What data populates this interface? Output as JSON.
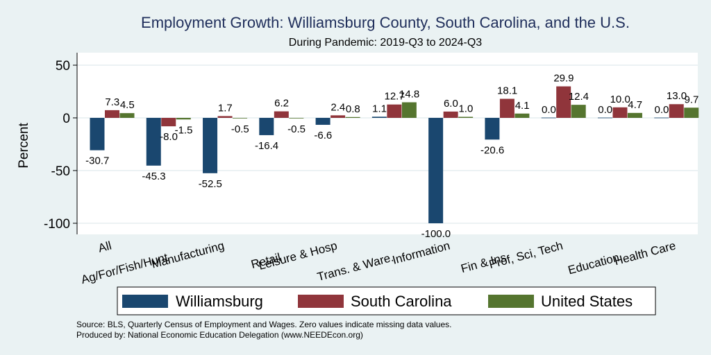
{
  "chart_data": {
    "type": "bar",
    "title": "Employment Growth: Williamsburg County, South Carolina, and the U.S.",
    "subtitle": "During Pandemic: 2019-Q3 to 2024-Q3",
    "ylabel": "Percent",
    "xlabel": "",
    "ylim": [
      -112,
      60
    ],
    "yticks": [
      50,
      0,
      -50,
      -100
    ],
    "yticks_labels": [
      "50",
      "0",
      "-50",
      "-100"
    ],
    "grid": true,
    "legend_position": "bottom",
    "categories": [
      "All",
      "Ag/For/Fish/Hunt",
      "Manufacturing",
      "Retail",
      "Leisure & Hosp",
      "Trans. & Ware.",
      "Information",
      "Fin & Ins",
      "Prof, Sci, Tech",
      "Education",
      "Health Care"
    ],
    "series": [
      {
        "name": "Williamsburg",
        "color": "#1a476f",
        "values": [
          -30.7,
          -45.3,
          -52.5,
          -16.4,
          -6.6,
          1.1,
          -100.0,
          -20.6,
          0.0,
          0.0,
          0.0
        ],
        "labels": [
          "-30.7",
          "-45.3",
          "-52.5",
          "-16.4",
          "-6.6",
          "1.1",
          "-100.0",
          "-20.6",
          "0.0",
          "0.0",
          "0.0"
        ]
      },
      {
        "name": "South Carolina",
        "color": "#90353b",
        "values": [
          7.3,
          -8.0,
          1.7,
          6.2,
          2.4,
          12.7,
          6.0,
          18.1,
          29.9,
          10.0,
          13.0
        ],
        "labels": [
          "7.3",
          "-8.0",
          "1.7",
          "6.2",
          "2.4",
          "12.7",
          "6.0",
          "18.1",
          "29.9",
          "10.0",
          "13.0"
        ]
      },
      {
        "name": "United States",
        "color": "#55752f",
        "values": [
          4.5,
          -1.5,
          -0.5,
          -0.5,
          0.8,
          14.8,
          1.0,
          4.1,
          12.4,
          4.7,
          9.7
        ],
        "labels": [
          "4.5",
          "-1.5",
          "-0.5",
          "-0.5",
          "0.8",
          "14.8",
          "1.0",
          "4.1",
          "12.4",
          "4.7",
          "9.7"
        ]
      }
    ],
    "notes": [
      "Source: BLS, Quarterly Census of Employment and Wages. Zero values indicate missing data values.",
      "Produced by: National Economic Education Delegation (www.NEEDEcon.org)"
    ]
  },
  "colors": {
    "background": "#eaf2f3",
    "plot_background": "#ffffff",
    "title": "#1e2d5a",
    "grid": "#e6eef0"
  }
}
